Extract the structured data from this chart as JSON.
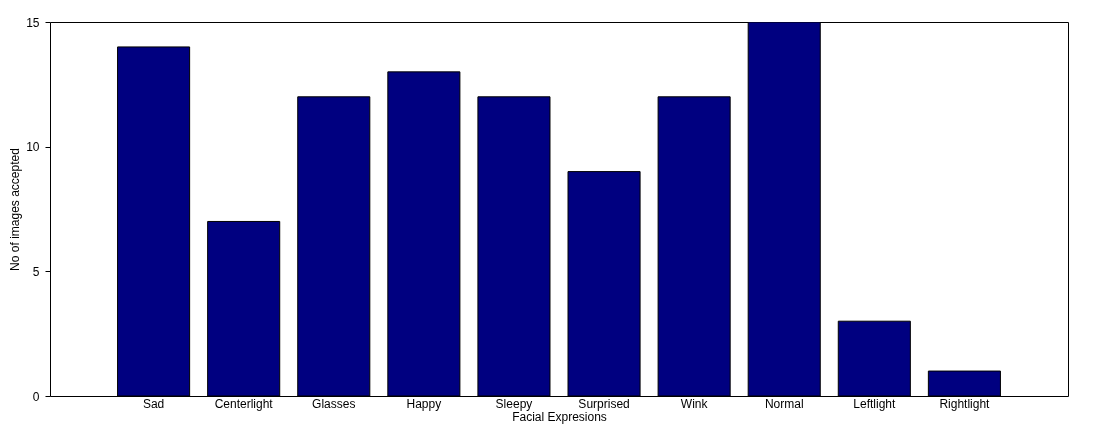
{
  "chart_data": {
    "type": "bar",
    "xlabel": "Facial Expresions",
    "ylabel": "No of images accepted",
    "categories": [
      "Sad",
      "Centerlight",
      "Glasses",
      "Happy",
      "Sleepy",
      "Surprised",
      "Wink",
      "Normal",
      "Leftlight",
      "Rightlight"
    ],
    "values": [
      14,
      7,
      12,
      13,
      12,
      9,
      12,
      15,
      3,
      1
    ],
    "color": "#000080",
    "ylim": [
      0,
      15
    ],
    "yticks": [
      0,
      5,
      10,
      15
    ],
    "grid": false
  }
}
